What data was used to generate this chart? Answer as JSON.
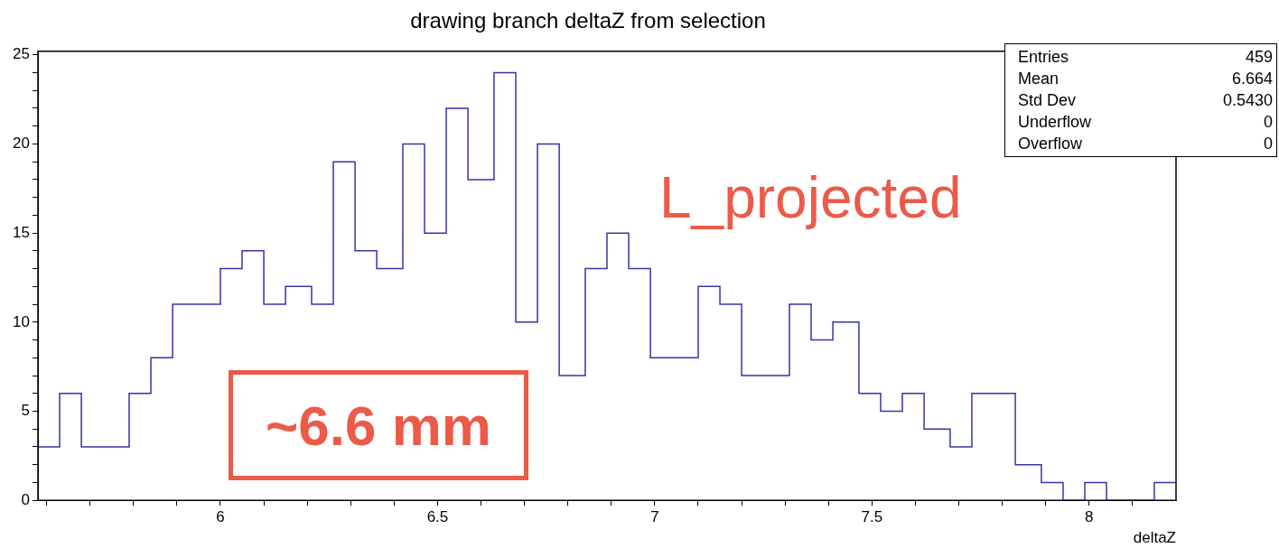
{
  "chart_data": {
    "type": "histogram",
    "title": "drawing branch deltaZ from selection",
    "xlabel": "deltaZ",
    "bins": [
      5.58,
      5.63,
      5.68,
      5.73,
      5.79,
      5.84,
      5.89,
      5.94,
      6.0,
      6.05,
      6.1,
      6.15,
      6.21,
      6.26,
      6.31,
      6.36,
      6.42,
      6.47,
      6.52,
      6.57,
      6.63,
      6.68,
      6.73,
      6.78,
      6.84,
      6.89,
      6.94,
      6.99,
      7.05,
      7.1,
      7.15,
      7.2,
      7.26,
      7.31,
      7.36,
      7.41,
      7.47,
      7.52,
      7.57,
      7.62,
      7.68,
      7.73,
      7.78,
      7.83,
      7.89,
      7.94,
      7.99,
      8.04,
      8.1,
      8.15,
      8.2
    ],
    "values": [
      3,
      6,
      3,
      3,
      6,
      8,
      11,
      11,
      13,
      14,
      11,
      12,
      11,
      19,
      14,
      13,
      20,
      15,
      22,
      18,
      24,
      10,
      20,
      7,
      13,
      15,
      13,
      8,
      8,
      12,
      11,
      7,
      7,
      11,
      9,
      10,
      6,
      5,
      6,
      4,
      3,
      6,
      6,
      2,
      1,
      0,
      1,
      0,
      0,
      1
    ],
    "color": "#3535a8",
    "xlim": [
      5.58,
      8.2
    ],
    "xticks": [
      {
        "value": 5.6,
        "label": null
      },
      {
        "value": 5.7,
        "label": null
      },
      {
        "value": 5.8,
        "label": null
      },
      {
        "value": 5.9,
        "label": null
      },
      6,
      {
        "value": 6.1,
        "label": null
      },
      {
        "value": 6.2,
        "label": null
      },
      {
        "value": 6.3,
        "label": null
      },
      {
        "value": 6.4,
        "label": null
      },
      6.5,
      {
        "value": 6.6,
        "label": null
      },
      {
        "value": 6.7,
        "label": null
      },
      {
        "value": 6.8,
        "label": null
      },
      {
        "value": 6.9,
        "label": null
      },
      7,
      {
        "value": 7.1,
        "label": null
      },
      {
        "value": 7.2,
        "label": null
      },
      {
        "value": 7.3,
        "label": null
      },
      {
        "value": 7.4,
        "label": null
      },
      7.5,
      {
        "value": 7.6,
        "label": null
      },
      {
        "value": 7.7,
        "label": null
      },
      {
        "value": 7.8,
        "label": null
      },
      {
        "value": 7.9,
        "label": null
      },
      8,
      {
        "value": 8.1,
        "label": null
      }
    ],
    "ylim": [
      0,
      25.2
    ],
    "yticks": [
      0,
      {
        "value": 1,
        "label": null
      },
      {
        "value": 2,
        "label": null
      },
      {
        "value": 3,
        "label": null
      },
      {
        "value": 4,
        "label": null
      },
      5,
      {
        "value": 6,
        "label": null
      },
      {
        "value": 7,
        "label": null
      },
      {
        "value": 8,
        "label": null
      },
      {
        "value": 9,
        "label": null
      },
      10,
      {
        "value": 11,
        "label": null
      },
      {
        "value": 12,
        "label": null
      },
      {
        "value": 13,
        "label": null
      },
      {
        "value": 14,
        "label": null
      },
      15,
      {
        "value": 16,
        "label": null
      },
      {
        "value": 17,
        "label": null
      },
      {
        "value": 18,
        "label": null
      },
      {
        "value": 19,
        "label": null
      },
      20,
      {
        "value": 21,
        "label": null
      },
      {
        "value": 22,
        "label": null
      },
      {
        "value": 23,
        "label": null
      },
      {
        "value": 24,
        "label": null
      },
      25
    ],
    "annotations": [
      "Entries 459",
      "Mean 6.664",
      "Std Dev 0.5430",
      "Underflow 0",
      "Overflow 0",
      "L_projected",
      "~6.6 mm"
    ]
  }
}
